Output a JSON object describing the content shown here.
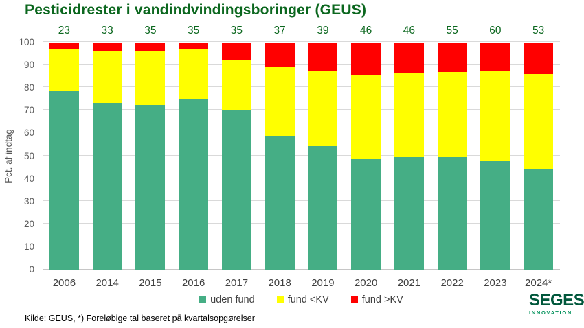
{
  "title": "Pesticidrester i vandindvindingsboringer (GEUS)",
  "chart_data": {
    "type": "bar",
    "stacked": true,
    "title": "Pesticidrester i vandindvindingsboringer (GEUS)",
    "ylabel": "Pct. af indtag",
    "ylim": [
      0,
      100
    ],
    "yticks": [
      0,
      10,
      20,
      30,
      40,
      50,
      60,
      70,
      80,
      90,
      100
    ],
    "grid": true,
    "legend_position": "bottom",
    "categories": [
      "2006",
      "2014",
      "2015",
      "2016",
      "2017",
      "2018",
      "2019",
      "2020",
      "2021",
      "2022",
      "2023",
      "2024*"
    ],
    "bar_count_labels": [
      23,
      33,
      35,
      35,
      35,
      37,
      39,
      46,
      46,
      55,
      60,
      53
    ],
    "series": [
      {
        "name": "uden fund",
        "color": "#45AE85",
        "values": [
          78.5,
          73.5,
          72.5,
          75,
          70.5,
          59,
          54.5,
          48.5,
          49.5,
          49.5,
          48,
          44
        ]
      },
      {
        "name": "fund <KV",
        "color": "#FFFF00",
        "values": [
          18.5,
          23,
          24,
          22,
          22,
          30,
          33,
          37,
          37,
          37.5,
          39.5,
          42
        ]
      },
      {
        "name": "fund >KV",
        "color": "#FF0000",
        "values": [
          3,
          3.5,
          3.5,
          3,
          7.5,
          11,
          12.5,
          14.5,
          13.5,
          13,
          12.5,
          14
        ]
      }
    ]
  },
  "footer": {
    "source_note": "Kilde: GEUS, *) Foreløbige tal baseret på kvartalsopgørelser"
  },
  "logo": {
    "name": "SEGES",
    "subtitle": "INNOVATION"
  },
  "colors": {
    "title_green": "#0B671E",
    "bar_green": "#45AE85",
    "bar_yellow": "#FFFF00",
    "bar_red": "#FF0000",
    "axis_text": "#595959",
    "category_text": "#404040",
    "gridline": "#D9D9D9",
    "logo_green": "#00573B",
    "logo_sub_green": "#00915A"
  }
}
